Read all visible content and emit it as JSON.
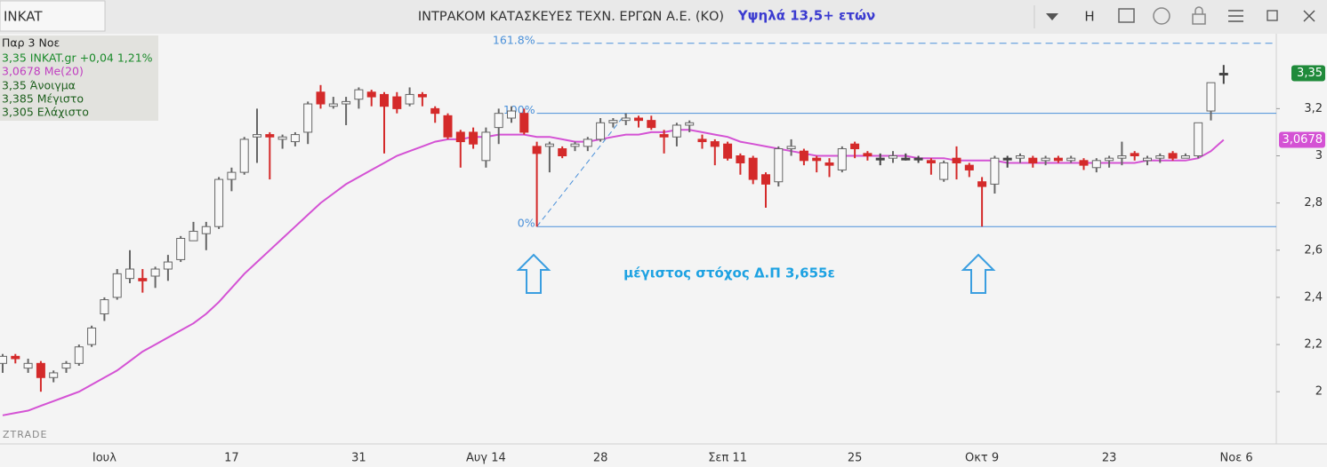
{
  "header": {
    "symbol": "INKAT",
    "title": "ΙΝΤΡΑΚΟΜ ΚΑΤΑΣΚΕΥΕΣ ΤΕΧΝ. ΕΡΓΩΝ Α.Ε. (ΚΟ)",
    "highlight": "Υψηλά 13,5+ ετών",
    "button": "H"
  },
  "info": {
    "date": "Παρ 3 Νοε",
    "lines": [
      "3,35 INKAT.gr +0,04 1,21%",
      "3,0678 Me(20)",
      "3,35 Άνοιγμα",
      "3,385 Μέγιστο",
      "3,305 Ελάχιστο"
    ]
  },
  "watermark": "ZTRADE",
  "chart_data": {
    "type": "candlestick",
    "categories": [
      null,
      null,
      null,
      null,
      null,
      null,
      null,
      null,
      "Ιουλ",
      null,
      null,
      null,
      null,
      null,
      null,
      null,
      null,
      null,
      "17",
      null,
      null,
      null,
      null,
      null,
      null,
      null,
      null,
      null,
      "31",
      null,
      null,
      null,
      null,
      null,
      null,
      null,
      null,
      null,
      "Αυγ 14",
      null,
      null,
      null,
      null,
      null,
      null,
      null,
      null,
      "28",
      null,
      null,
      null,
      null,
      null,
      null,
      null,
      null,
      null,
      "Σεπ 11",
      null,
      null,
      null,
      null,
      null,
      null,
      null,
      null,
      null,
      "25",
      null,
      null,
      null,
      null,
      null,
      null,
      null,
      null,
      null,
      "Οκτ 9",
      null,
      null,
      null,
      null,
      null,
      null,
      null,
      null,
      null,
      "23",
      null,
      null,
      null,
      null,
      null,
      null,
      null,
      null,
      null,
      "Νοε 6"
    ],
    "open": [
      2.12,
      2.15,
      2.1,
      2.12,
      2.06,
      2.1,
      2.12,
      2.2,
      2.33,
      2.4,
      2.48,
      2.48,
      2.49,
      2.52,
      2.56,
      2.64,
      2.67,
      2.7,
      2.9,
      2.93,
      3.08,
      3.09,
      3.07,
      3.06,
      3.1,
      3.27,
      3.21,
      3.22,
      3.24,
      3.27,
      3.26,
      3.25,
      3.22,
      3.26,
      3.2,
      3.17,
      3.1,
      3.1,
      2.98,
      3.12,
      3.16,
      3.18,
      3.04,
      3.04,
      3.03,
      3.04,
      3.04,
      3.07,
      3.14,
      3.15,
      3.16,
      3.15,
      3.09,
      3.08,
      3.13,
      3.07,
      3.06,
      3.05,
      3.0,
      2.99,
      2.92,
      2.89,
      3.03,
      3.02,
      2.99,
      2.97,
      2.94,
      3.05,
      3.01,
      2.99,
      2.99,
      2.99,
      2.99,
      2.98,
      2.9,
      2.99,
      2.96,
      2.89,
      2.88,
      2.99,
      2.99,
      2.99,
      2.98,
      2.99,
      2.98,
      2.98,
      2.95,
      2.98,
      2.99,
      3.01,
      2.98,
      2.99,
      3.01,
      2.99,
      3.0,
      3.19,
      3.35,
      null
    ],
    "high": [
      2.16,
      2.16,
      2.14,
      2.13,
      2.09,
      2.13,
      2.2,
      2.28,
      2.4,
      2.52,
      2.6,
      2.52,
      2.53,
      2.58,
      2.66,
      2.72,
      2.72,
      2.91,
      2.95,
      3.08,
      3.2,
      3.1,
      3.09,
      3.1,
      3.23,
      3.3,
      3.25,
      3.25,
      3.29,
      3.28,
      3.27,
      3.27,
      3.29,
      3.27,
      3.21,
      3.18,
      3.11,
      3.12,
      3.12,
      3.2,
      3.21,
      3.2,
      3.06,
      3.06,
      3.04,
      3.06,
      3.08,
      3.16,
      3.16,
      3.18,
      3.17,
      3.17,
      3.11,
      3.14,
      3.15,
      3.09,
      3.07,
      3.06,
      3.01,
      3.0,
      2.93,
      3.04,
      3.07,
      3.03,
      3.0,
      2.99,
      3.04,
      3.06,
      3.02,
      3.01,
      3.02,
      3.01,
      3.0,
      2.99,
      2.98,
      3.04,
      2.97,
      2.91,
      3.0,
      3.0,
      3.01,
      3.0,
      3.0,
      3.0,
      3.0,
      2.99,
      2.99,
      3.0,
      3.06,
      3.02,
      3.0,
      3.01,
      3.02,
      3.01,
      3.14,
      3.31,
      3.385,
      null
    ],
    "low": [
      2.08,
      2.12,
      2.08,
      2.0,
      2.04,
      2.08,
      2.11,
      2.19,
      2.3,
      2.39,
      2.46,
      2.42,
      2.44,
      2.47,
      2.55,
      2.64,
      2.6,
      2.69,
      2.85,
      2.92,
      2.97,
      2.9,
      3.03,
      3.04,
      3.05,
      3.2,
      3.2,
      3.13,
      3.2,
      3.21,
      3.01,
      3.18,
      3.21,
      3.21,
      3.14,
      3.07,
      2.95,
      3.03,
      2.95,
      3.05,
      3.14,
      3.09,
      2.7,
      2.93,
      2.99,
      3.02,
      3.02,
      3.06,
      3.12,
      3.13,
      3.12,
      3.11,
      3.01,
      3.04,
      3.1,
      3.03,
      2.96,
      2.98,
      2.92,
      2.88,
      2.78,
      2.87,
      3.0,
      2.96,
      2.93,
      2.91,
      2.93,
      2.99,
      2.98,
      2.96,
      2.97,
      2.98,
      2.97,
      2.92,
      2.89,
      2.9,
      2.91,
      2.7,
      2.84,
      2.95,
      2.97,
      2.95,
      2.96,
      2.97,
      2.97,
      2.94,
      2.93,
      2.95,
      2.96,
      2.98,
      2.96,
      2.97,
      2.98,
      2.99,
      2.99,
      3.15,
      3.305,
      null
    ],
    "close": [
      2.15,
      2.14,
      2.12,
      2.06,
      2.08,
      2.12,
      2.19,
      2.27,
      2.39,
      2.5,
      2.52,
      2.47,
      2.52,
      2.55,
      2.65,
      2.68,
      2.7,
      2.9,
      2.93,
      3.07,
      3.09,
      3.08,
      3.08,
      3.09,
      3.22,
      3.22,
      3.22,
      3.23,
      3.28,
      3.25,
      3.21,
      3.2,
      3.26,
      3.25,
      3.18,
      3.08,
      3.06,
      3.05,
      3.1,
      3.18,
      3.19,
      3.1,
      3.01,
      3.05,
      3.0,
      3.05,
      3.07,
      3.14,
      3.15,
      3.16,
      3.15,
      3.12,
      3.08,
      3.13,
      3.14,
      3.06,
      3.04,
      2.99,
      2.97,
      2.9,
      2.88,
      3.03,
      3.04,
      2.98,
      2.98,
      2.96,
      3.03,
      3.03,
      3.0,
      2.99,
      3.0,
      2.99,
      2.99,
      2.97,
      2.97,
      2.97,
      2.94,
      2.87,
      2.99,
      2.99,
      3.0,
      2.97,
      2.99,
      2.98,
      2.99,
      2.96,
      2.98,
      2.99,
      3.0,
      3.0,
      2.99,
      3.0,
      2.99,
      3.0,
      3.14,
      3.31,
      3.35,
      null
    ],
    "ma": {
      "color": "#d452d4",
      "values": [
        1.9,
        1.91,
        1.92,
        1.94,
        1.96,
        1.98,
        2.0,
        2.03,
        2.06,
        2.09,
        2.13,
        2.17,
        2.2,
        2.23,
        2.26,
        2.29,
        2.33,
        2.38,
        2.44,
        2.5,
        2.55,
        2.6,
        2.65,
        2.7,
        2.75,
        2.8,
        2.84,
        2.88,
        2.91,
        2.94,
        2.97,
        3.0,
        3.02,
        3.04,
        3.06,
        3.07,
        3.07,
        3.08,
        3.08,
        3.09,
        3.09,
        3.09,
        3.08,
        3.08,
        3.07,
        3.06,
        3.06,
        3.07,
        3.08,
        3.09,
        3.09,
        3.1,
        3.1,
        3.11,
        3.11,
        3.1,
        3.09,
        3.08,
        3.06,
        3.05,
        3.04,
        3.03,
        3.02,
        3.01,
        3.0,
        3.0,
        3.0,
        3.0,
        3.0,
        3.0,
        3.0,
        3.0,
        2.99,
        2.99,
        2.99,
        2.98,
        2.98,
        2.98,
        2.98,
        2.97,
        2.97,
        2.97,
        2.97,
        2.97,
        2.97,
        2.97,
        2.97,
        2.97,
        2.97,
        2.97,
        2.98,
        2.98,
        2.98,
        2.98,
        2.99,
        3.02,
        3.0678,
        null
      ]
    },
    "up_color": "#666666",
    "down_color": "#d42a2a",
    "flat_color": "#444444",
    "ylim": [
      1.79,
      3.51
    ],
    "yticks": [
      2,
      {
        "value": 2.2,
        "label": "2,2"
      },
      {
        "value": 2.4,
        "label": "2,4"
      },
      {
        "value": 2.6,
        "label": "2,6"
      },
      {
        "value": 2.8,
        "label": "2,8"
      },
      3,
      {
        "value": 3.2,
        "label": "3,2"
      }
    ],
    "fibonacci": [
      {
        "value": 2.7,
        "label": "0%"
      },
      {
        "value": 3.18,
        "label": "100%"
      },
      {
        "value": 3.477,
        "label": "161.8%"
      }
    ],
    "fib_color": "#4a90d9",
    "price_tags": [
      {
        "value": 3.35,
        "label": "3,35",
        "color": "#1f8a3a"
      },
      {
        "value": 3.0678,
        "label": "3,0678",
        "color": "#d452d4"
      }
    ],
    "annotation": "μέγιστος στόχος Δ.Π 3,655ε"
  }
}
